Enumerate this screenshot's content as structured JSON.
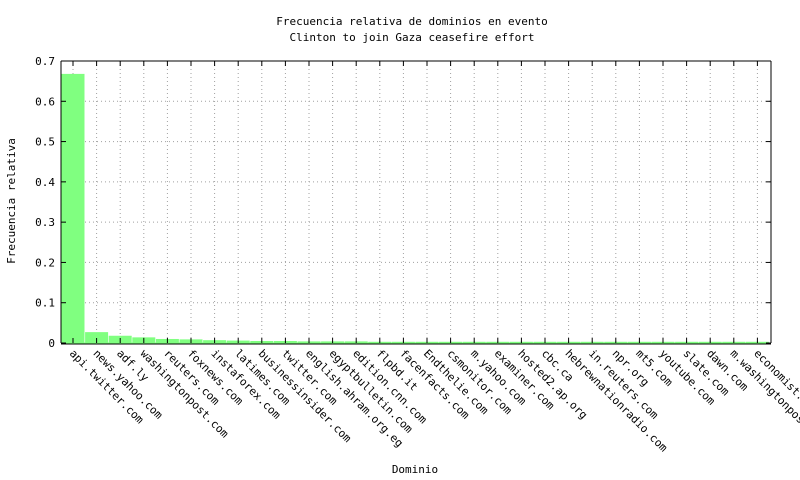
{
  "chart_data": {
    "type": "bar",
    "title": "Frecuencia relativa de dominios en evento",
    "subtitle": "Clinton to join Gaza ceasefire effort",
    "xlabel": "Dominio",
    "ylabel": "Frecuencia relativa",
    "ylim": [
      0,
      0.7
    ],
    "yticks": [
      "0",
      "0.1",
      "0.2",
      "0.3",
      "0.4",
      "0.5",
      "0.6",
      "0.7"
    ],
    "grid": true,
    "bar_color": "#80ff80",
    "categories": [
      "api.twitter.com",
      "news.yahoo.com",
      "adf.ly",
      "washingtonpost.com",
      "reuters.com",
      "foxnews.com",
      "instaforex.com",
      "latimes.com",
      "businessinsider.com",
      "twitter.com",
      "english.ahram.org.eg",
      "egyptbulletin.com",
      "edition.cnn.com",
      "flpbd.it",
      "facenfacts.com",
      "Endthelie.com",
      "csmonitor.com",
      "m.yahoo.com",
      "examiner.com",
      "hosted2.ap.org",
      "cbc.ca",
      "hebrewnationradio.com",
      "in.reuters.com",
      "npr.org",
      "mt5.com",
      "youtube.com",
      "slate.com",
      "dawn.com",
      "m.washingtonpost.com",
      "economist.com"
    ],
    "values": [
      0.668,
      0.027,
      0.018,
      0.014,
      0.01,
      0.009,
      0.007,
      0.006,
      0.005,
      0.005,
      0.004,
      0.004,
      0.004,
      0.003,
      0.003,
      0.003,
      0.003,
      0.003,
      0.003,
      0.003,
      0.003,
      0.003,
      0.003,
      0.003,
      0.003,
      0.003,
      0.003,
      0.003,
      0.003,
      0.003
    ]
  }
}
